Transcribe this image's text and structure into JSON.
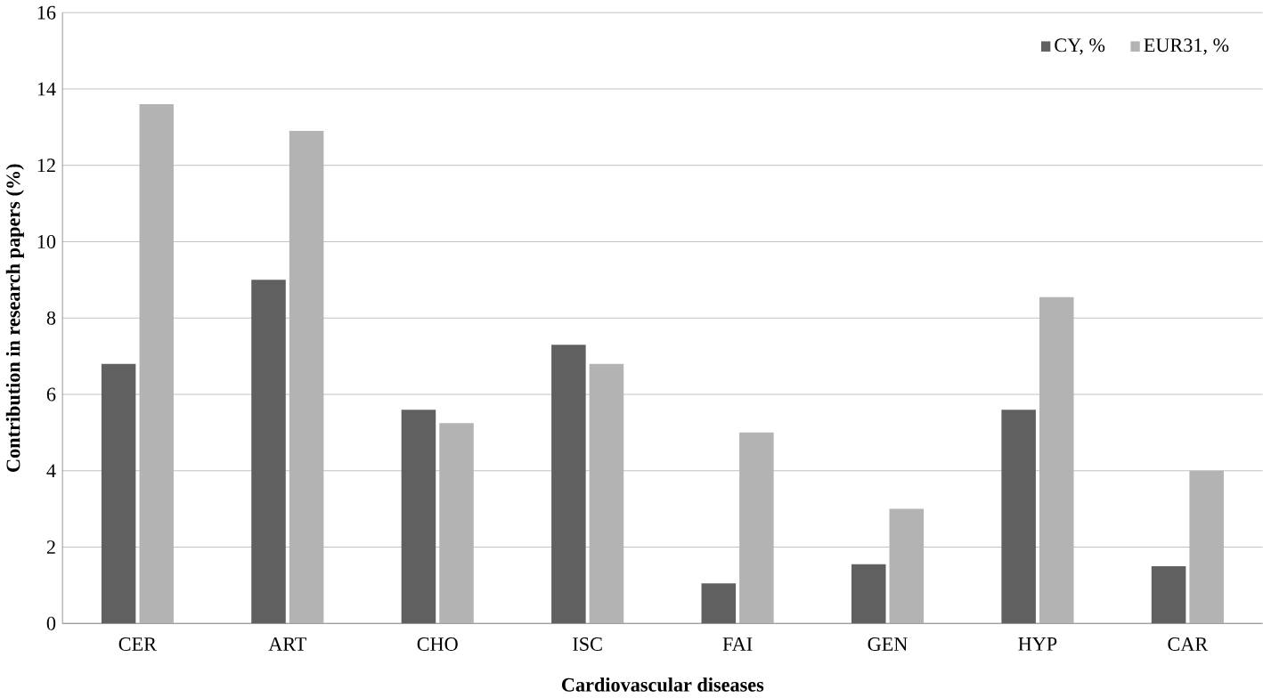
{
  "chart_data": {
    "type": "bar",
    "xlabel": "Cardiovascular diseases",
    "ylabel": "Contribution in research papers (%)",
    "categories": [
      "CER",
      "ART",
      "CHO",
      "ISC",
      "FAI",
      "GEN",
      "HYP",
      "CAR"
    ],
    "series": [
      {
        "name": "CY, %",
        "color": "#606060",
        "values": [
          6.8,
          9.0,
          5.6,
          7.3,
          1.05,
          1.55,
          5.6,
          1.5
        ]
      },
      {
        "name": "EUR31, %",
        "color": "#b3b3b3",
        "values": [
          13.6,
          12.9,
          5.25,
          6.8,
          5.0,
          3.0,
          8.55,
          4.0
        ]
      }
    ],
    "ylim": [
      0,
      16
    ],
    "yticks": [
      0,
      2,
      4,
      6,
      8,
      10,
      12,
      14,
      16
    ],
    "grid": "y",
    "legend": "top right"
  }
}
